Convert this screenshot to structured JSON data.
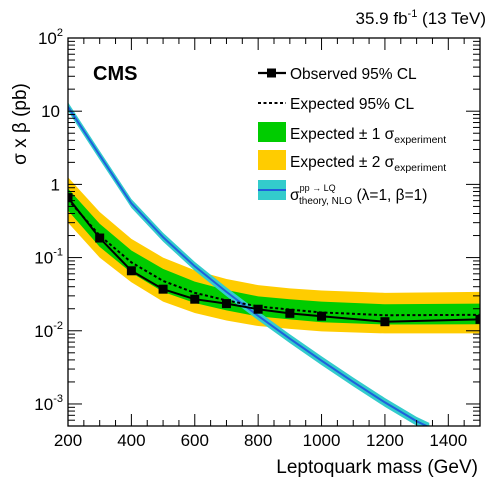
{
  "chart_data": {
    "type": "line",
    "experiment": "CMS",
    "lumi_label": "35.9 fb",
    "lumi_sup": "-1",
    "energy_label": " (13 TeV)",
    "xlabel": "Leptoquark mass (GeV)",
    "ylabel": "σ x β (pb)",
    "xlim": [
      200,
      1500
    ],
    "ylim": [
      0.0005,
      100
    ],
    "yscale": "log",
    "x_ticks": [
      "200",
      "400",
      "600",
      "800",
      "1000",
      "1200",
      "1400"
    ],
    "y_ticks": [
      {
        "base": "10",
        "exp": "-3",
        "value": 0.001
      },
      {
        "base": "10",
        "exp": "-2",
        "value": 0.01
      },
      {
        "base": "10",
        "exp": "-1",
        "value": 0.1
      },
      {
        "base": "1",
        "exp": "",
        "value": 1
      },
      {
        "base": "10",
        "exp": "",
        "value": 10
      },
      {
        "base": "10",
        "exp": "2",
        "value": 100
      }
    ],
    "legend_position": "top-right",
    "legend": {
      "observed": "Observed 95% CL",
      "expected": "Expected 95% CL",
      "band1_text": "Expected ± 1 σ",
      "band1_sub": "experiment",
      "band2_text": "Expected ± 2 σ",
      "band2_sub": "experiment",
      "theory_sigma": "σ",
      "theory_sup": "pp → LQ",
      "theory_sub": "theory, NLO",
      "theory_params": " (λ=1, β=1)"
    },
    "colors": {
      "observed": "#000000",
      "expected": "#000000",
      "band1": "#00cc00",
      "band2": "#ffcc00",
      "theory_line": "#1f5fdc",
      "theory_band": "#33cccc"
    },
    "observed": {
      "x": [
        200,
        300,
        400,
        500,
        600,
        700,
        800,
        900,
        1000,
        1200,
        1500
      ],
      "y": [
        0.66,
        0.185,
        0.066,
        0.037,
        0.027,
        0.0235,
        0.0197,
        0.0173,
        0.0158,
        0.0133,
        0.0143
      ]
    },
    "expected": {
      "x": [
        200,
        300,
        400,
        500,
        600,
        700,
        800,
        900,
        1000,
        1200,
        1500
      ],
      "y": [
        0.62,
        0.2,
        0.086,
        0.048,
        0.033,
        0.026,
        0.0215,
        0.0195,
        0.0178,
        0.0163,
        0.0165
      ]
    },
    "band_1sigma": {
      "x": [
        200,
        300,
        400,
        500,
        600,
        700,
        800,
        900,
        1000,
        1200,
        1500
      ],
      "low": [
        0.44,
        0.14,
        0.062,
        0.034,
        0.024,
        0.019,
        0.0157,
        0.0143,
        0.0131,
        0.0122,
        0.0123
      ],
      "high": [
        0.88,
        0.29,
        0.125,
        0.07,
        0.047,
        0.036,
        0.0295,
        0.027,
        0.025,
        0.023,
        0.0235
      ]
    },
    "band_2sigma": {
      "x": [
        200,
        300,
        400,
        500,
        600,
        700,
        800,
        900,
        1000,
        1200,
        1500
      ],
      "low": [
        0.3,
        0.1,
        0.046,
        0.025,
        0.0175,
        0.0138,
        0.0116,
        0.0106,
        0.0098,
        0.0092,
        0.0092
      ],
      "high": [
        1.25,
        0.42,
        0.18,
        0.1,
        0.067,
        0.051,
        0.042,
        0.038,
        0.0355,
        0.033,
        0.034
      ]
    },
    "theory": {
      "x": [
        200,
        300,
        400,
        500,
        600,
        700,
        800,
        900,
        1000,
        1100,
        1200,
        1300,
        1340
      ],
      "y": [
        11.5,
        2.5,
        0.55,
        0.19,
        0.076,
        0.034,
        0.016,
        0.0078,
        0.0039,
        0.002,
        0.00105,
        0.00058,
        0.00048
      ]
    }
  }
}
